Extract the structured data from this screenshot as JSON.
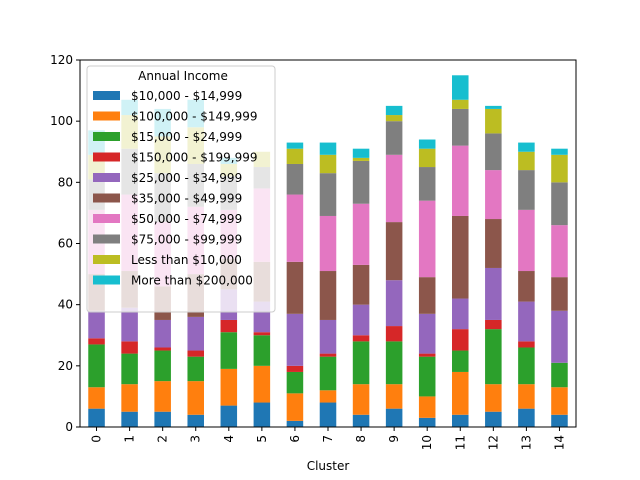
{
  "chart_data": {
    "type": "bar",
    "stacked": true,
    "xlabel": "Cluster",
    "ylabel": "",
    "title": "",
    "ylim": [
      0,
      120
    ],
    "yticks": [
      0,
      20,
      40,
      60,
      80,
      100,
      120
    ],
    "grid": false,
    "legend_title": "Annual Income",
    "legend_position": "upper-left",
    "categories": [
      "0",
      "1",
      "2",
      "3",
      "4",
      "5",
      "6",
      "7",
      "8",
      "9",
      "10",
      "11",
      "12",
      "13",
      "14"
    ],
    "series": [
      {
        "name": "$10,000 - $14,999",
        "color": "#1f77b4",
        "values": [
          6,
          5,
          5,
          4,
          7,
          8,
          2,
          8,
          4,
          6,
          3,
          4,
          5,
          6,
          4
        ]
      },
      {
        "name": "$100,000 - $149,999",
        "color": "#ff7f0e",
        "values": [
          7,
          9,
          10,
          11,
          12,
          12,
          9,
          4,
          10,
          8,
          7,
          14,
          9,
          8,
          9
        ]
      },
      {
        "name": "$15,000 - $24,999",
        "color": "#2ca02c",
        "values": [
          14,
          10,
          10,
          8,
          12,
          10,
          7,
          11,
          14,
          14,
          13,
          7,
          18,
          12,
          8
        ]
      },
      {
        "name": "$150,000 - $199,999",
        "color": "#d62728",
        "values": [
          2,
          4,
          1,
          2,
          4,
          1,
          2,
          1,
          2,
          5,
          1,
          7,
          3,
          2,
          0
        ]
      },
      {
        "name": "$25,000 - $34,999",
        "color": "#9467bd",
        "values": [
          9,
          11,
          9,
          11,
          10,
          10,
          17,
          11,
          10,
          15,
          13,
          10,
          17,
          13,
          17
        ]
      },
      {
        "name": "$35,000 - $49,999",
        "color": "#8c564b",
        "values": [
          12,
          12,
          11,
          14,
          10,
          13,
          17,
          16,
          13,
          19,
          12,
          27,
          16,
          10,
          11
        ]
      },
      {
        "name": "$50,000 - $74,999",
        "color": "#e377c2",
        "values": [
          21,
          25,
          21,
          22,
          16,
          24,
          22,
          18,
          20,
          22,
          25,
          23,
          16,
          20,
          17
        ]
      },
      {
        "name": "$75,000 - $99,999",
        "color": "#7f7f7f",
        "values": [
          10,
          15,
          16,
          14,
          11,
          7,
          10,
          14,
          14,
          11,
          11,
          12,
          12,
          13,
          14
        ]
      },
      {
        "name": "Less than $10,000",
        "color": "#bcbd22",
        "values": [
          8,
          11,
          12,
          12,
          4,
          5,
          5,
          6,
          1,
          2,
          6,
          3,
          8,
          6,
          9
        ]
      },
      {
        "name": "More than $200,000",
        "color": "#17becf",
        "values": [
          8,
          5,
          9,
          9,
          2,
          0,
          2,
          4,
          3,
          3,
          3,
          8,
          1,
          3,
          2
        ]
      }
    ]
  }
}
